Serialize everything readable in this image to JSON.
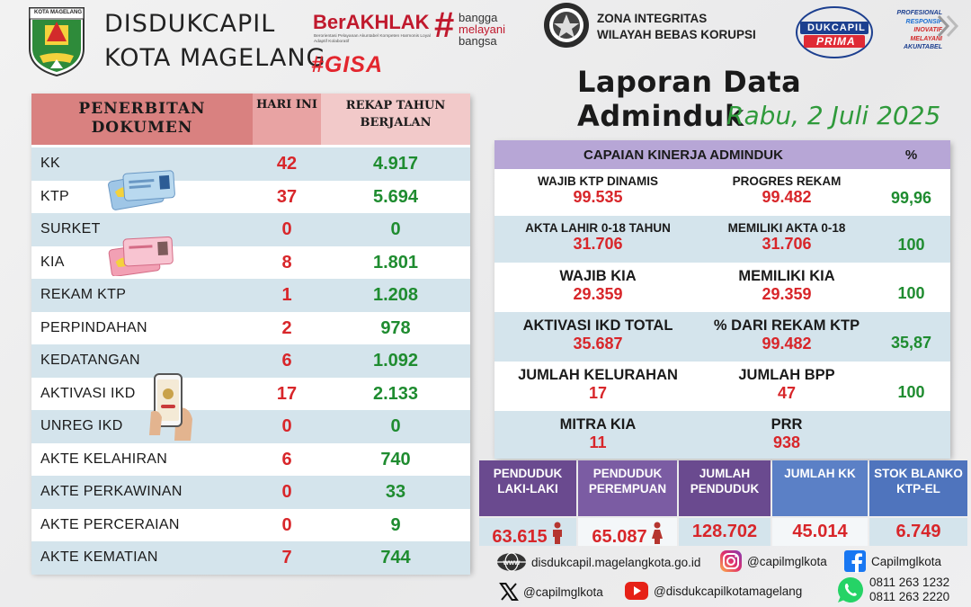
{
  "header": {
    "logo_label": "KOTA MAGELANG",
    "org_line1": "DISDUKCAPIL",
    "org_line2": "KOTA MAGELANG",
    "berakhlak_name": "BerAKHLAK",
    "berakhlak_sub": "Berorientasi Pelayanan Akuntabel Kompeten Harmonis Loyal Adaptif Kolaboratif",
    "bangga_1": "bangga",
    "bangga_2": "melayani",
    "bangga_3": "bangsa",
    "gisa": "#GISA",
    "zi_line1": "ZONA INTEGRITAS",
    "zi_line2": "WILAYAH BEBAS KORUPSI",
    "prima_top": "DUKCAPIL",
    "prima_bottom": "PRIMA",
    "prima_tags": [
      "PROFESIONAL",
      "RESPONSIF",
      "INOVATIF",
      "MELAYANI",
      "AKUNTABEL"
    ],
    "report_title": "Laporan Data Adminduk",
    "report_date": "Rabu, 2 Juli 2025"
  },
  "documents": {
    "header_doc": "PENERBITAN DOKUMEN",
    "header_today": "HARI INI",
    "header_year": "REKAP TAHUN BERJALAN",
    "rows": [
      {
        "name": "KK",
        "today": "42",
        "year": "4.917"
      },
      {
        "name": "KTP",
        "today": "37",
        "year": "5.694"
      },
      {
        "name": "SURKET",
        "today": "0",
        "year": "0"
      },
      {
        "name": "KIA",
        "today": "8",
        "year": "1.801"
      },
      {
        "name": "REKAM KTP",
        "today": "1",
        "year": "1.208"
      },
      {
        "name": "PERPINDAHAN",
        "today": "2",
        "year": "978"
      },
      {
        "name": "KEDATANGAN",
        "today": "6",
        "year": "1.092"
      },
      {
        "name": "AKTIVASI IKD",
        "today": "17",
        "year": "2.133"
      },
      {
        "name": "UNREG IKD",
        "today": "0",
        "year": "0"
      },
      {
        "name": "AKTE KELAHIRAN",
        "today": "6",
        "year": "740"
      },
      {
        "name": "AKTE PERKAWINAN",
        "today": "0",
        "year": "33"
      },
      {
        "name": "AKTE PERCERAIAN",
        "today": "0",
        "year": "9"
      },
      {
        "name": "AKTE KEMATIAN",
        "today": "7",
        "year": "744"
      }
    ]
  },
  "performance": {
    "header_title": "CAPAIAN KINERJA ADMINDUK",
    "header_pct": "%",
    "rows": [
      {
        "l1": "WAJIB KTP DINAMIS",
        "v1": "99.535",
        "l2": "PROGRES REKAM",
        "v2": "99.482",
        "pct": "99,96"
      },
      {
        "l1": "AKTA LAHIR 0-18 TAHUN",
        "v1": "31.706",
        "l2": "MEMILIKI AKTA 0-18",
        "v2": "31.706",
        "pct": "100"
      },
      {
        "l1": "WAJIB KIA",
        "v1": "29.359",
        "l2": "MEMILIKI KIA",
        "v2": "29.359",
        "pct": "100"
      },
      {
        "l1": "AKTIVASI IKD TOTAL",
        "v1": "35.687",
        "l2": "% DARI REKAM KTP",
        "v2": "99.482",
        "pct": "35,87"
      },
      {
        "l1": "JUMLAH KELURAHAN",
        "v1": "17",
        "l2": "JUMLAH BPP",
        "v2": "47",
        "pct": "100"
      },
      {
        "l1": "MITRA KIA",
        "v1": "11",
        "l2": "PRR",
        "v2": "938",
        "pct": ""
      }
    ]
  },
  "summary": {
    "items": [
      {
        "label": "PENDUDUK LAKI-LAKI",
        "value": "63.615",
        "color": "#6a4a8f"
      },
      {
        "label": "PENDUDUK PEREMPUAN",
        "value": "65.087",
        "color": "#7b5ca3"
      },
      {
        "label": "JUMLAH PENDUDUK",
        "value": "128.702",
        "color": "#6a4a8f"
      },
      {
        "label": "JUMLAH KK",
        "value": "45.014",
        "color": "#5b80c6"
      },
      {
        "label": "STOK BLANKO KTP-EL",
        "value": "6.749",
        "color": "#4f74bd"
      }
    ]
  },
  "footer": {
    "website": "disdukcapil.magelangkota.go.id",
    "instagram": "@capilmglkota",
    "facebook": "Capilmglkota",
    "twitter": "@capilmglkota",
    "youtube": "@disdukcapilkotamagelang",
    "phone1": "0811 263 1232",
    "phone2": "0811 263 2220"
  }
}
